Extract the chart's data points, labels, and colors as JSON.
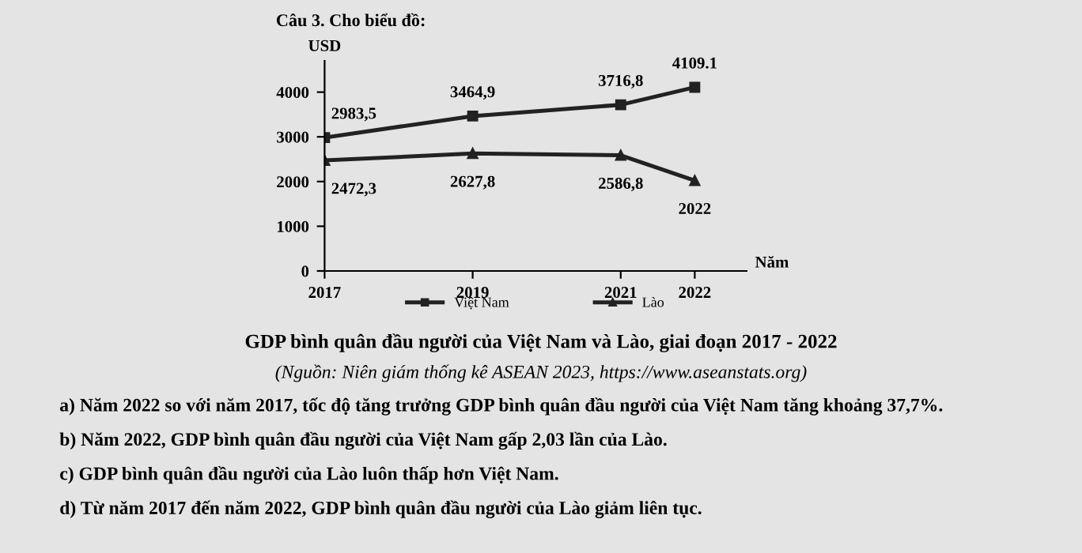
{
  "chart_data": {
    "type": "line",
    "title": "GDP bình quân đầu người của Việt Nam và Lào, giai đoạn 2017 - 2022",
    "ylabel": "USD",
    "xlabel": "Năm",
    "x": [
      2017,
      2019,
      2021,
      2022
    ],
    "xlim": [
      2017,
      2022.7
    ],
    "xticks": [
      2017,
      2019,
      2021,
      2022
    ],
    "ylim": [
      0,
      4700
    ],
    "yticks": [
      0,
      1000,
      2000,
      3000,
      4000
    ],
    "series": [
      {
        "name": "Việt Nam",
        "color": "#222222",
        "marker": "square",
        "values": [
          2983.5,
          3464.9,
          3716.8,
          4109.1
        ],
        "value_labels": [
          "2983,5",
          "3464,9",
          "3716,8",
          "4109.1"
        ]
      },
      {
        "name": "Lào",
        "color": "#222222",
        "marker": "triangle",
        "values": [
          2472.3,
          2627.8,
          2586.8,
          2022
        ],
        "value_labels": [
          "2472,3",
          "2627,8",
          "2586,8",
          "2022"
        ]
      }
    ],
    "legend": "bottom",
    "grid": false,
    "annotations": [
      "Câu 3. Cho biểu đồ:",
      "(Nguồn: Niên giám thống kê ASEAN 2023, https://www.aseanstats.org)",
      "a) Năm 2022 so với năm 2017, tốc độ tăng trưởng GDP bình quân đầu người của Việt Nam tăng khoảng 37,7%.",
      "b) Năm 2022, GDP bình quân đầu người của Việt Nam gấp 2,03 lần của Lào.",
      "c) GDP bình quân đầu người của Lào luôn thấp hơn Việt Nam.",
      "d) Từ năm 2017 đến năm 2022, GDP bình quân đầu người của Lào giảm liên tục."
    ]
  }
}
